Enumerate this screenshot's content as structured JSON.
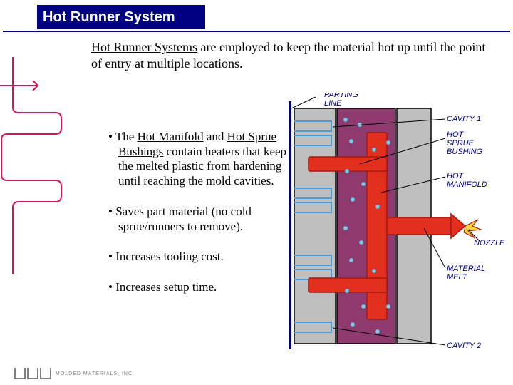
{
  "title": "Hot Runner System",
  "intro_prefix": "Hot Runner Systems",
  "intro_rest": " are employed to keep the material hot up until the point of entry at multiple locations.",
  "bullet1_pre": "The ",
  "bullet1_u1": "Hot Manifold",
  "bullet1_mid": " and ",
  "bullet1_u2": "Hot Sprue Bushings",
  "bullet1_post": " contain heaters that keep the melted plastic from hardening until reaching the mold cavities.",
  "bullet2": "Saves part material (no cold sprue/runners to remove).",
  "bullet3": "Increases tooling cost.",
  "bullet4": "Increases setup time.",
  "footer": "MOLDED MATERIALS, INC.",
  "labels": {
    "parting_line": "PARTING LINE",
    "cavity1": "CAVITY 1",
    "hot_sprue_bushing": "HOT SPRUE BUSHING",
    "hot_manifold": "HOT MANIFOLD",
    "nozzle": "NOZZLE",
    "material_melt": "MATERIAL MELT",
    "cavity2": "CAVITY 2"
  },
  "diagram_style": {
    "mold_plate_fill": "#bfbfbf",
    "mold_plate_stroke": "#000000",
    "manifold_fill": "#8e3a6f",
    "manifold_stroke": "#000000",
    "cavity_stroke": "#4a9bd4",
    "runner_red_fill": "#e22f1e",
    "runner_red_stroke": "#a01c10",
    "heater_dot": "#7fc8e8",
    "parting_line_stroke": "#000080",
    "label_color": "#000080",
    "label_font_family": "Arial, sans-serif",
    "label_font_style": "italic",
    "label_font_size": 11,
    "nozzle_yellow": "#f3d23a",
    "background": "#ffffff"
  },
  "squiggle_style": {
    "stroke": "#d4145a",
    "stroke_width": 2
  }
}
